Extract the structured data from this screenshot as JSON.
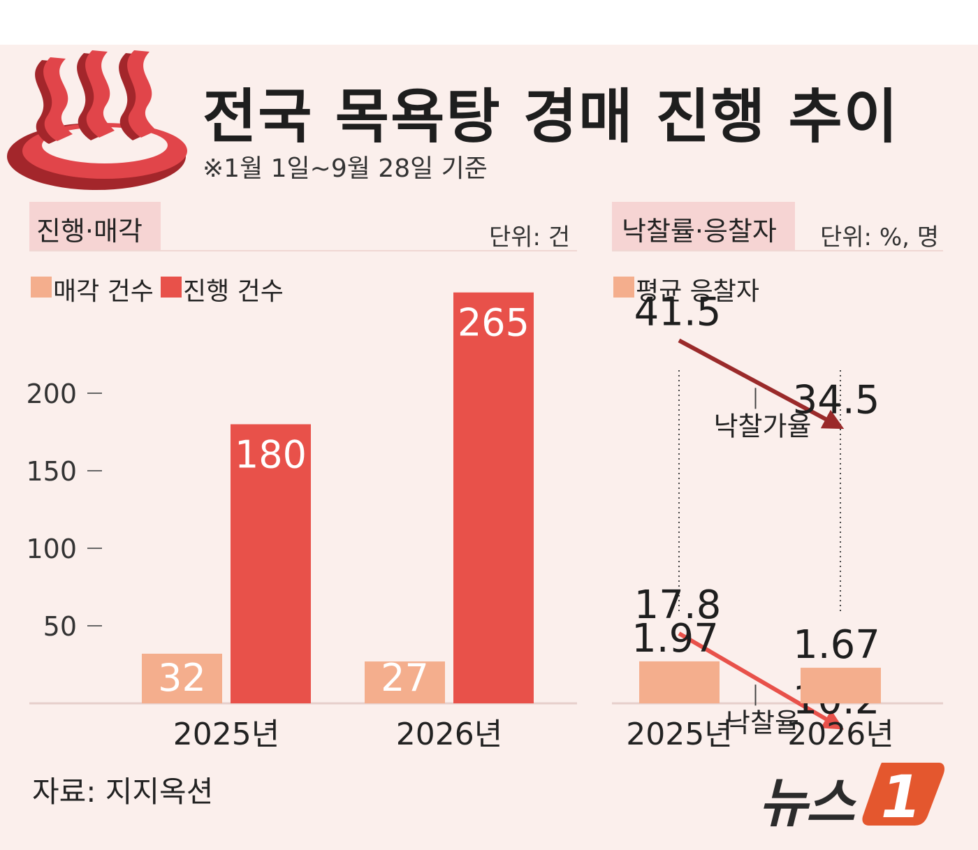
{
  "header": {
    "title": "전국 목욕탕 경매 진행 추이",
    "subtitle": "※1월 1일~9월 28일 기준"
  },
  "left_panel": {
    "section_label": "진행·매각",
    "unit": "단위: 건",
    "legend": [
      "매각 건수",
      "진행 건수"
    ]
  },
  "right_panel": {
    "section_label": "낙찰률·응찰자",
    "unit": "단위: %, 명",
    "legend": [
      "평균 응찰자"
    ],
    "line_labels": [
      "낙찰가율",
      "낙찰율"
    ]
  },
  "footer": {
    "source": "자료: 지지옥션",
    "logo_text": "뉴스",
    "logo_mark": "1"
  },
  "colors": {
    "sold": "#f4ae8d",
    "progress": "#e8514a",
    "bid_price_rate_line": "#9a2a2a",
    "win_rate_line": "#e8514a",
    "avg_bidders": "#f4ae8d",
    "background": "#fbefec",
    "logo_orange": "#e4572e"
  },
  "chart_data": [
    {
      "type": "bar",
      "categories": [
        "2025년",
        "2026년"
      ],
      "series": [
        {
          "name": "매각 건수",
          "values": [
            32,
            27
          ]
        },
        {
          "name": "진행 건수",
          "values": [
            180,
            265
          ]
        }
      ],
      "yticks": [
        50,
        100,
        150,
        200
      ],
      "ylim": [
        0,
        270
      ],
      "legend": "top-left",
      "grid": false
    },
    {
      "type": "line",
      "categories": [
        "2025년",
        "2026년"
      ],
      "series": [
        {
          "name": "낙찰가율",
          "values": [
            41.5,
            34.5
          ]
        },
        {
          "name": "낙찰율",
          "values": [
            17.8,
            10.2
          ]
        }
      ]
    },
    {
      "type": "bar",
      "categories": [
        "2025년",
        "2026년"
      ],
      "series": [
        {
          "name": "평균 응찰자",
          "values": [
            1.97,
            1.67
          ]
        }
      ],
      "legend": "top-left"
    }
  ]
}
